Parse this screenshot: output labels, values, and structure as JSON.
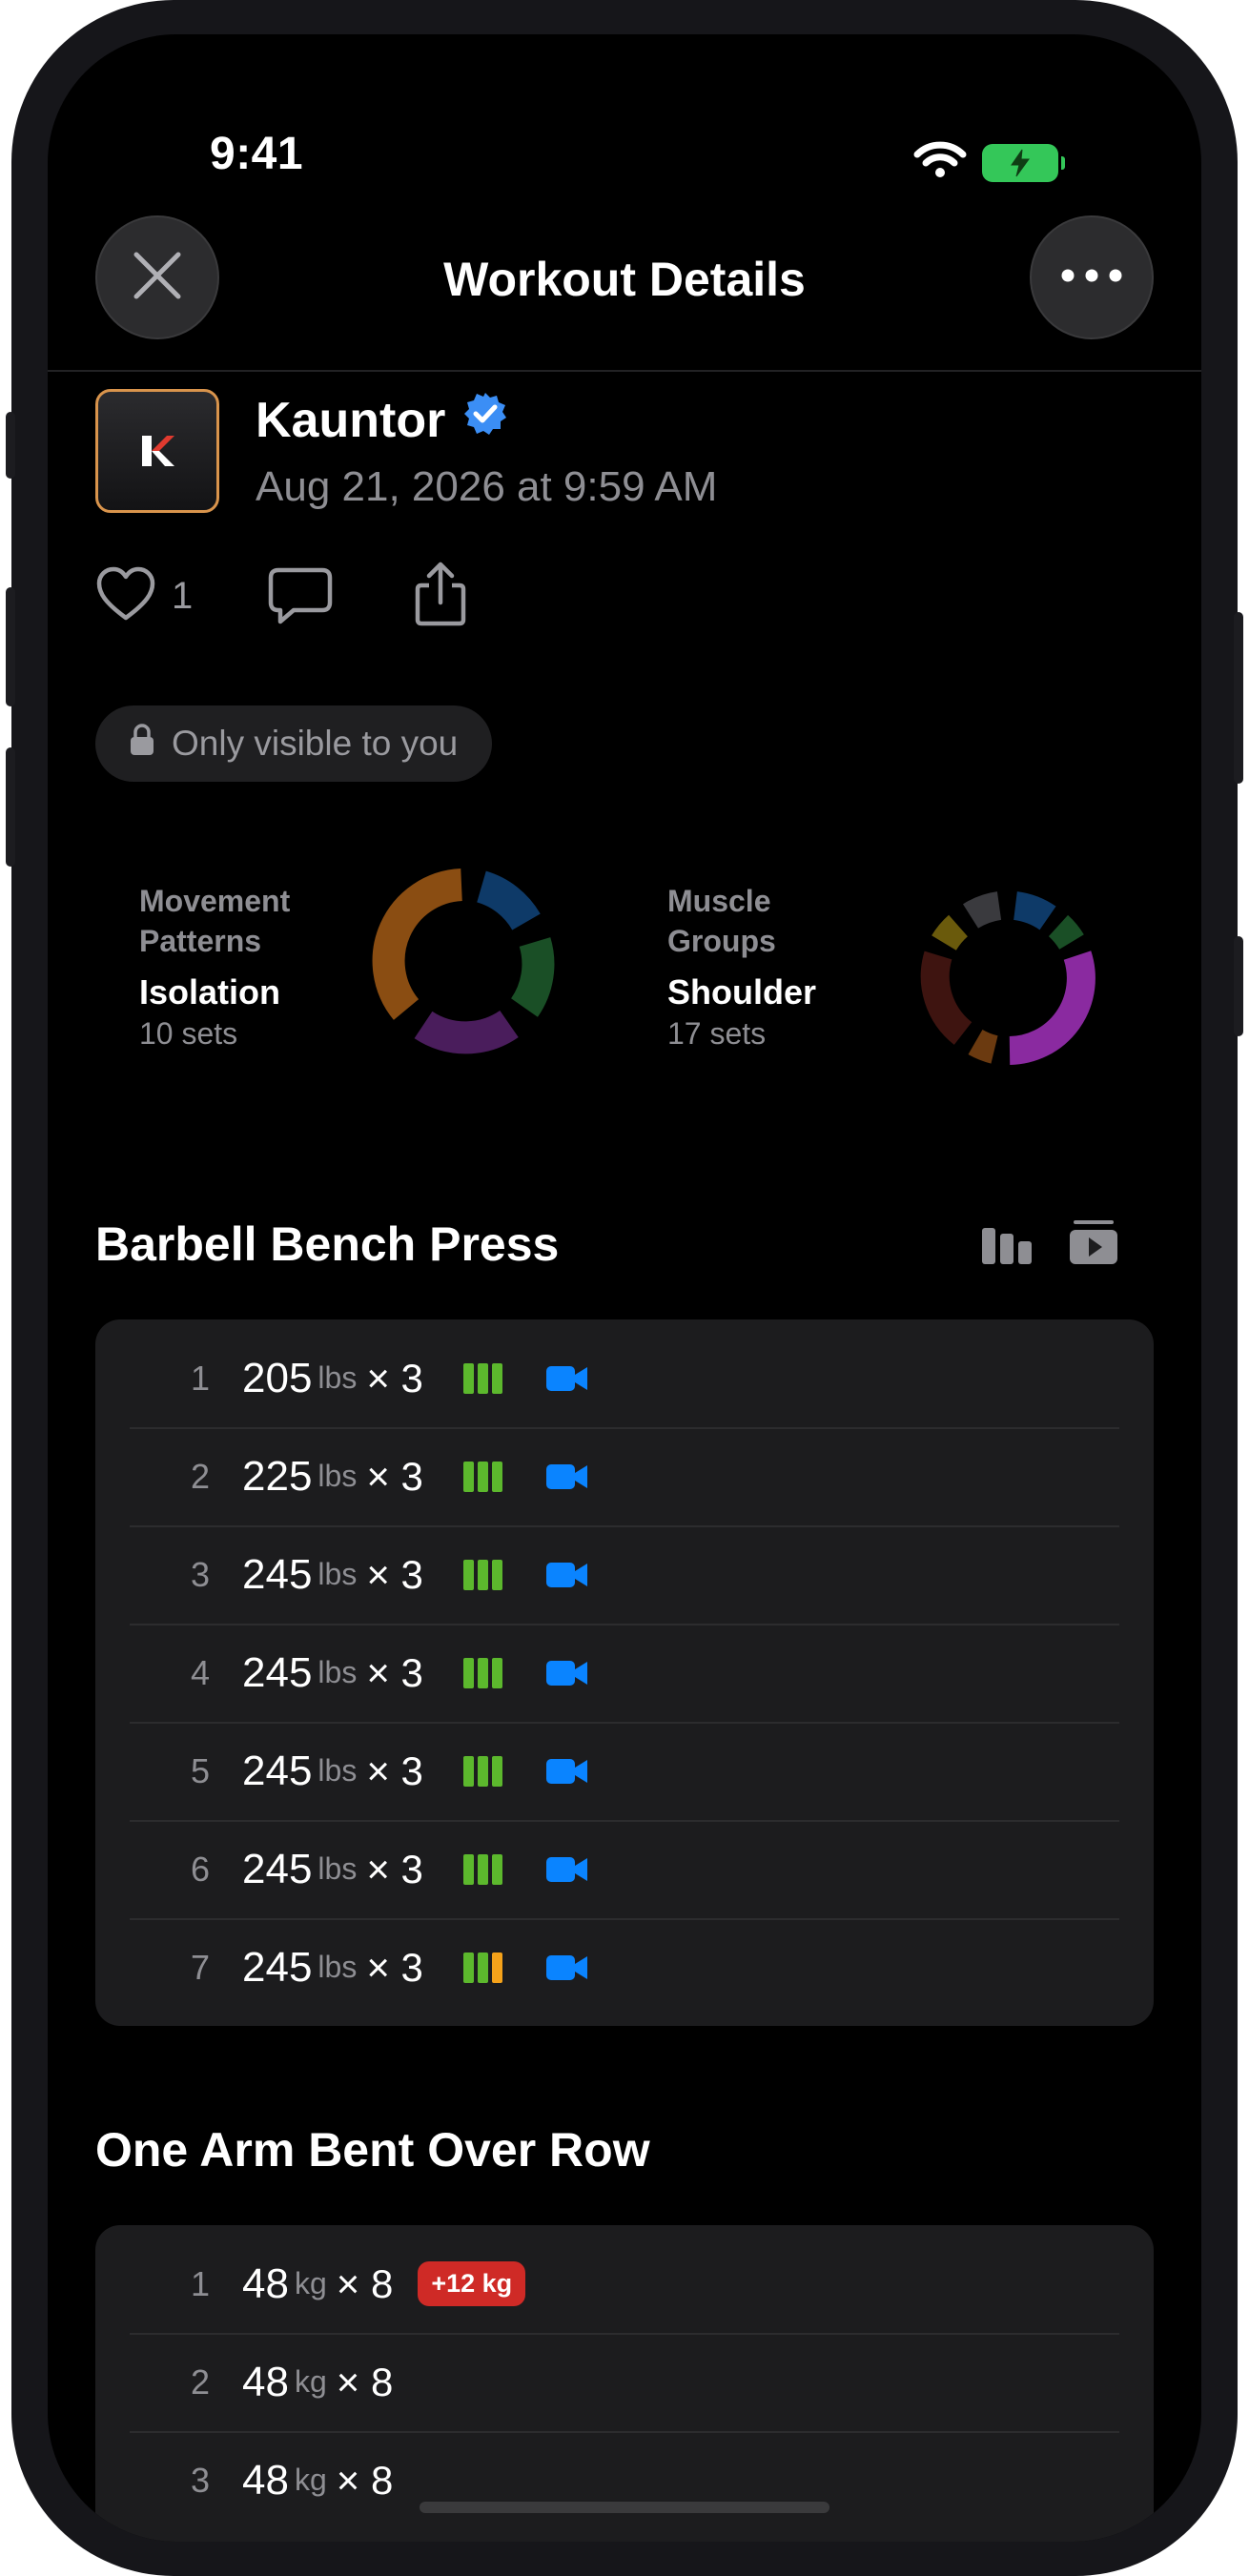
{
  "status_bar": {
    "time": "9:41"
  },
  "nav": {
    "title": "Workout Details"
  },
  "profile": {
    "name": "Kauntor",
    "date": "Aug 21, 2026 at 9:59 AM",
    "logo_letter": "K"
  },
  "actions": {
    "like_count": "1"
  },
  "privacy": {
    "label": "Only visible to you"
  },
  "stats": {
    "movement": {
      "label_line1": "Movement",
      "label_line2": "Patterns",
      "value": "Isolation",
      "sub": "10 sets"
    },
    "muscle": {
      "label_line1": "Muscle",
      "label_line2": "Groups",
      "value": "Shoulder",
      "sub": "17 sets"
    }
  },
  "colors": {
    "accent_blue": "#0a84ff",
    "rpe_green": "#5cb82d",
    "rpe_orange": "#f5a21a",
    "badge_red": "#cf2a26",
    "logo_border": "#d9944c"
  },
  "exercises": [
    {
      "title": "Barbell Bench Press",
      "sets": [
        {
          "num": "1",
          "weight": "205",
          "unit": "lbs",
          "reps": "× 3"
        },
        {
          "num": "2",
          "weight": "225",
          "unit": "lbs",
          "reps": "× 3"
        },
        {
          "num": "3",
          "weight": "245",
          "unit": "lbs",
          "reps": "× 3"
        },
        {
          "num": "4",
          "weight": "245",
          "unit": "lbs",
          "reps": "× 3"
        },
        {
          "num": "5",
          "weight": "245",
          "unit": "lbs",
          "reps": "× 3"
        },
        {
          "num": "6",
          "weight": "245",
          "unit": "lbs",
          "reps": "× 3"
        },
        {
          "num": "7",
          "weight": "245",
          "unit": "lbs",
          "reps": "× 3"
        }
      ]
    },
    {
      "title": "One Arm Bent Over Row",
      "sets": [
        {
          "num": "1",
          "weight": "48",
          "unit": "kg",
          "reps": "× 8",
          "badge": "+12 kg"
        },
        {
          "num": "2",
          "weight": "48",
          "unit": "kg",
          "reps": "× 8"
        },
        {
          "num": "3",
          "weight": "48",
          "unit": "kg",
          "reps": "× 8"
        }
      ]
    }
  ]
}
